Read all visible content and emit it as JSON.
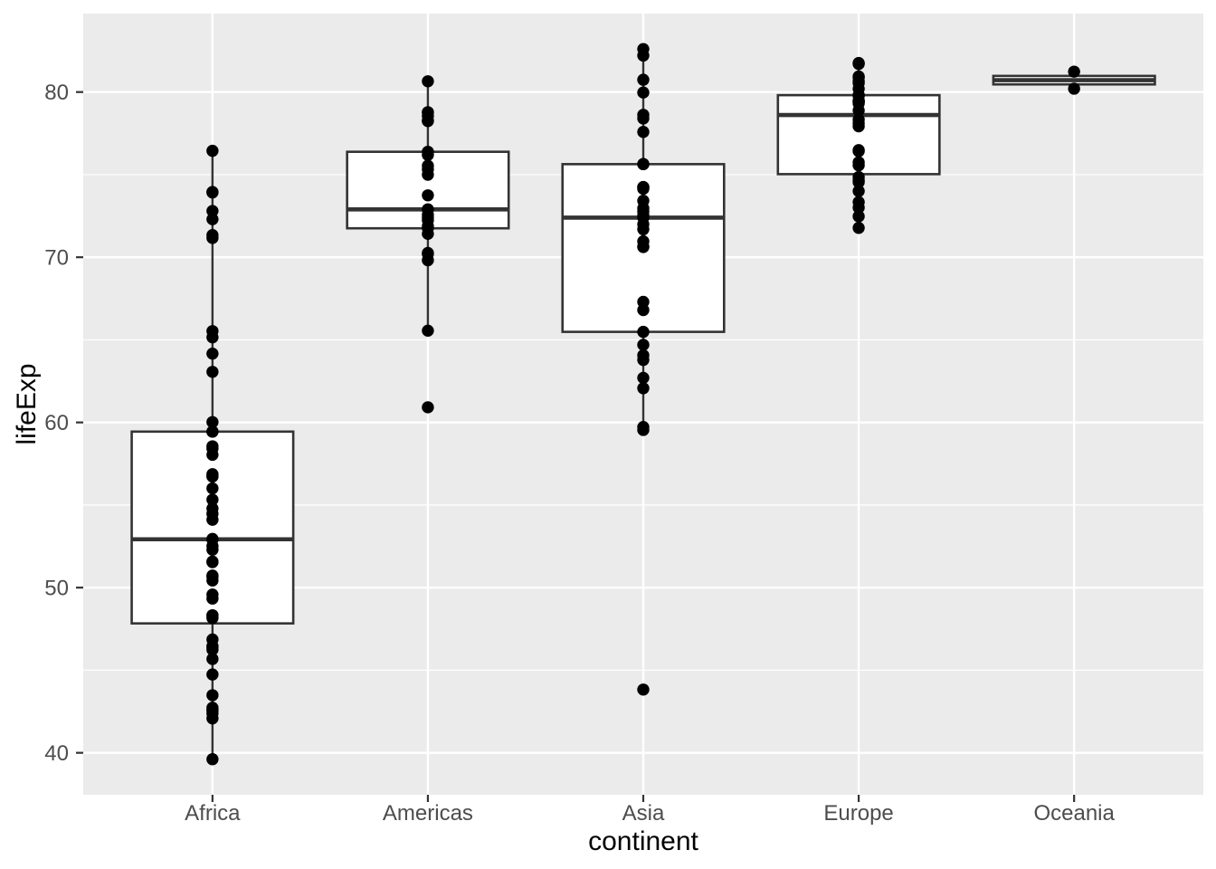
{
  "chart_data": {
    "type": "boxplot",
    "title": "",
    "xlabel": "continent",
    "ylabel": "lifeExp",
    "categories": [
      "Africa",
      "Americas",
      "Asia",
      "Europe",
      "Oceania"
    ],
    "y_ticks": [
      40,
      50,
      60,
      70,
      80
    ],
    "y_minor_gridlines": [
      45,
      55,
      65,
      75
    ],
    "ylim": [
      37.46,
      84.75
    ],
    "legend_position": "none",
    "grid": "white major and minor horizontal lines, white major vertical lines at category centers",
    "boxes": [
      {
        "category": "Africa",
        "q1": 47.834,
        "median": 52.927,
        "q3": 59.444,
        "whisker_low": 39.613,
        "whisker_high": 76.442,
        "outliers": []
      },
      {
        "category": "Americas",
        "q1": 71.752,
        "median": 72.899,
        "q3": 76.384,
        "whisker_low": 65.554,
        "whisker_high": 80.653,
        "outliers": [
          60.916
        ]
      },
      {
        "category": "Asia",
        "q1": 65.483,
        "median": 72.396,
        "q3": 75.635,
        "whisker_low": 59.545,
        "whisker_high": 82.603,
        "outliers": [
          43.828
        ]
      },
      {
        "category": "Europe",
        "q1": 75.03,
        "median": 78.609,
        "q3": 79.812,
        "whisker_low": 71.777,
        "whisker_high": 81.757,
        "outliers": []
      },
      {
        "category": "Oceania",
        "q1": 80.462,
        "median": 80.72,
        "q3": 80.977,
        "whisker_low": 80.204,
        "whisker_high": 81.235,
        "outliers": []
      }
    ],
    "series": [
      {
        "name": "Africa",
        "values": [
          72.301,
          42.731,
          56.728,
          50.728,
          52.295,
          49.58,
          50.43,
          44.741,
          50.651,
          65.152,
          46.462,
          55.322,
          48.328,
          54.791,
          71.338,
          51.579,
          58.04,
          52.947,
          56.735,
          59.448,
          60.022,
          56.007,
          46.388,
          54.11,
          42.592,
          45.678,
          73.952,
          59.443,
          48.303,
          54.467,
          64.164,
          72.801,
          71.164,
          42.082,
          52.906,
          56.867,
          46.859,
          76.442,
          46.242,
          65.528,
          63.062,
          42.568,
          48.159,
          49.339,
          58.556,
          39.613,
          52.517,
          58.42,
          73.923,
          51.542,
          42.384,
          43.487
        ]
      },
      {
        "name": "Americas",
        "values": [
          75.32,
          65.554,
          72.39,
          80.653,
          78.553,
          72.889,
          78.782,
          78.273,
          72.235,
          74.994,
          71.878,
          70.259,
          60.916,
          70.198,
          72.567,
          76.195,
          72.899,
          75.537,
          71.752,
          71.421,
          78.746,
          69.819,
          78.242,
          76.384,
          73.747
        ]
      },
      {
        "name": "Asia",
        "values": [
          43.828,
          75.635,
          64.062,
          59.723,
          72.961,
          82.208,
          64.698,
          70.65,
          70.964,
          59.545,
          80.745,
          82.603,
          72.535,
          67.297,
          78.623,
          77.588,
          71.993,
          74.241,
          66.803,
          62.069,
          63.785,
          75.64,
          65.483,
          71.688,
          72.777,
          79.972,
          72.396,
          74.143,
          78.4,
          70.616,
          74.249,
          73.422,
          62.698
        ]
      },
      {
        "name": "Europe",
        "values": [
          76.423,
          79.829,
          79.441,
          74.852,
          73.005,
          75.748,
          76.486,
          78.332,
          79.313,
          80.657,
          79.406,
          79.483,
          73.338,
          81.757,
          78.885,
          80.546,
          74.543,
          79.762,
          80.196,
          75.563,
          78.098,
          72.476,
          74.002,
          74.663,
          77.926,
          80.941,
          80.884,
          81.701,
          71.777,
          79.425
        ]
      },
      {
        "name": "Oceania",
        "values": [
          81.235,
          80.204
        ]
      }
    ]
  },
  "style": {
    "panel_bg": "#EBEBEB",
    "grid_color": "#FFFFFF",
    "box_fill": "#FFFFFF",
    "box_stroke": "#333333",
    "point_color": "#000000",
    "tick_label_color": "#4D4D4D",
    "tick_mark_color": "#333333",
    "axis_title_color": "#000000"
  }
}
